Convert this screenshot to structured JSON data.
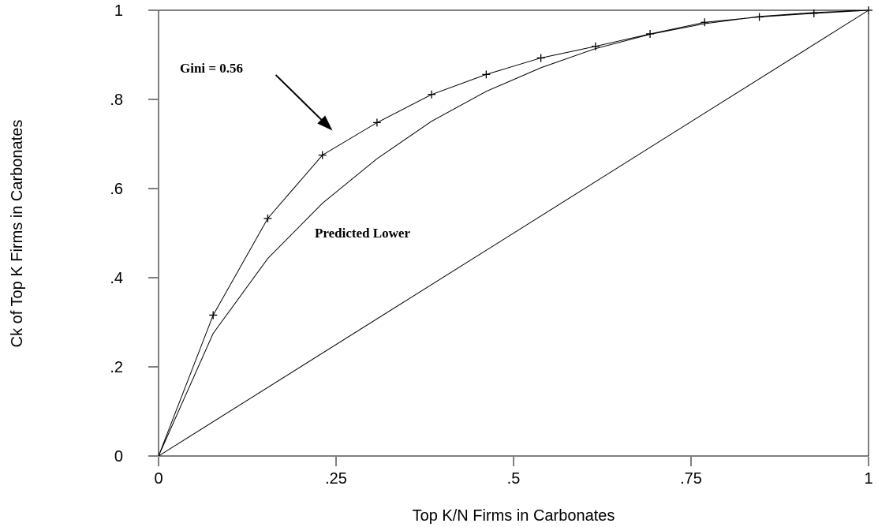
{
  "chart_data": {
    "type": "line",
    "title": "",
    "xlabel": "Top K/N Firms in Carbonates",
    "ylabel": "Ck of Top K Firms in Carbonates",
    "xlim": [
      0,
      1
    ],
    "ylim": [
      0,
      1
    ],
    "x_ticks": [
      {
        "value": 0,
        "label": "0"
      },
      {
        "value": 0.25,
        "label": ".25"
      },
      {
        "value": 0.5,
        "label": ".5"
      },
      {
        "value": 0.75,
        "label": ".75"
      },
      {
        "value": 1,
        "label": "1"
      }
    ],
    "y_ticks": [
      {
        "value": 0,
        "label": "0"
      },
      {
        "value": 0.2,
        "label": ".2"
      },
      {
        "value": 0.4,
        "label": ".4"
      },
      {
        "value": 0.6,
        "label": ".6"
      },
      {
        "value": 0.8,
        "label": ".8"
      },
      {
        "value": 1,
        "label": "1"
      }
    ],
    "grid": false,
    "series": [
      {
        "marker": "plus",
        "x": [
          0,
          0.0769,
          0.1538,
          0.2308,
          0.3077,
          0.3846,
          0.4615,
          0.5385,
          0.6154,
          0.6923,
          0.7692,
          0.8462,
          0.9231,
          1
        ],
        "values": [
          0,
          0.316,
          0.533,
          0.675,
          0.748,
          0.811,
          0.856,
          0.893,
          0.919,
          0.947,
          0.973,
          0.985,
          0.993,
          1
        ]
      },
      {
        "marker": "none",
        "x": [
          0,
          0.0769,
          0.1538,
          0.2308,
          0.3077,
          0.3846,
          0.4615,
          0.5385,
          0.6154,
          0.6923,
          0.7692,
          0.8462,
          0.9231,
          1
        ],
        "values": [
          0,
          0.275,
          0.443,
          0.567,
          0.667,
          0.751,
          0.818,
          0.871,
          0.914,
          0.946,
          0.97,
          0.986,
          0.995,
          1
        ]
      },
      {
        "marker": "none",
        "x": [
          0,
          1
        ],
        "values": [
          0,
          1
        ]
      }
    ],
    "annotations": [
      {
        "text": "Gini = 0.56",
        "x": 0.03,
        "y": 0.86
      },
      {
        "text": "Predicted Lower",
        "x": 0.22,
        "y": 0.49
      }
    ],
    "arrow": {
      "from": [
        0.165,
        0.855
      ],
      "to": [
        0.245,
        0.73
      ]
    }
  }
}
